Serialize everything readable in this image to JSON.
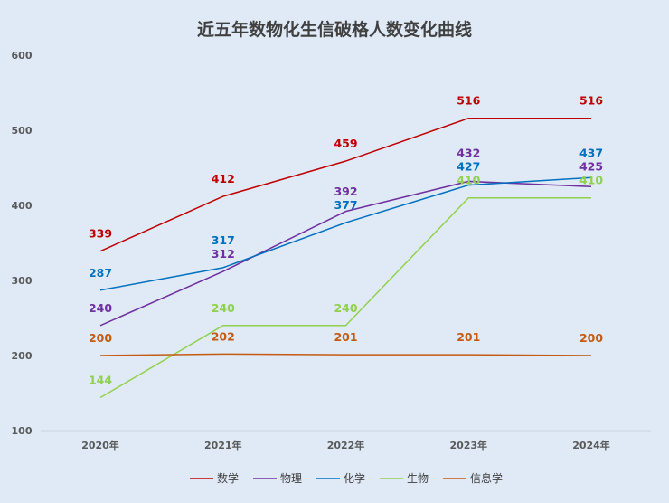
{
  "chart_data": {
    "type": "line",
    "title": "近五年数物化生信破格人数变化曲线",
    "categories": [
      "2020年",
      "2021年",
      "2022年",
      "2023年",
      "2024年"
    ],
    "ylim": [
      100,
      600
    ],
    "yticks": [
      100,
      200,
      300,
      400,
      500,
      600
    ],
    "grid": false,
    "legend": "bottom",
    "series": [
      {
        "name": "数学",
        "color": "#c00000",
        "values": [
          339,
          412,
          459,
          516,
          516
        ]
      },
      {
        "name": "物理",
        "color": "#7030a0",
        "values": [
          240,
          312,
          392,
          432,
          425
        ]
      },
      {
        "name": "化学",
        "color": "#0070c0",
        "values": [
          287,
          317,
          377,
          427,
          437
        ]
      },
      {
        "name": "生物",
        "color": "#92d050",
        "values": [
          144,
          240,
          240,
          410,
          410
        ]
      },
      {
        "name": "信息学",
        "color": "#c55a11",
        "values": [
          200,
          202,
          201,
          201,
          200
        ]
      }
    ]
  }
}
